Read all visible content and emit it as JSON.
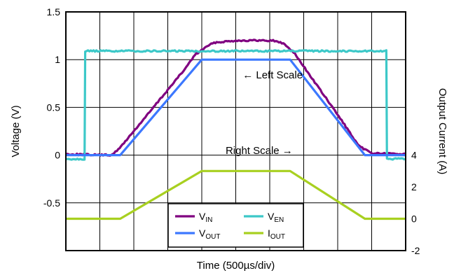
{
  "chart_data": {
    "type": "line",
    "xlabel": "Time (500µs/div)",
    "ylabel_left": "Voltage (V)",
    "ylabel_right": "Output Current (A)",
    "xlim": [
      0,
      10
    ],
    "ylim_left": [
      -1.0,
      1.5
    ],
    "ylim_right": [
      -2,
      13
    ],
    "left_ticks": [
      {
        "value": 1.5,
        "label": "1.5"
      },
      {
        "value": 1.0,
        "label": "1"
      },
      {
        "value": 0.5,
        "label": "0.5"
      },
      {
        "value": 0.0,
        "label": "0"
      },
      {
        "value": -0.5,
        "label": "-0.5"
      }
    ],
    "right_ticks": [
      {
        "value": 4,
        "label": "4"
      },
      {
        "value": 2,
        "label": "2"
      },
      {
        "value": 0,
        "label": "0"
      },
      {
        "value": -2,
        "label": "-2"
      }
    ],
    "grid": true,
    "series": [
      {
        "name": "VIN",
        "label_main": "V",
        "label_sub": "IN",
        "color": "#800080",
        "axis": "left",
        "noisy": true,
        "points": [
          [
            0,
            0.01
          ],
          [
            1.3,
            0.0
          ],
          [
            1.5,
            0.04
          ],
          [
            2.0,
            0.25
          ],
          [
            3.5,
            0.9
          ],
          [
            3.8,
            1.05
          ],
          [
            4.2,
            1.15
          ],
          [
            4.4,
            1.18
          ],
          [
            5.0,
            1.2
          ],
          [
            6.1,
            1.2
          ],
          [
            6.4,
            1.17
          ],
          [
            6.7,
            1.08
          ],
          [
            8.2,
            0.32
          ],
          [
            8.6,
            0.1
          ],
          [
            9.0,
            0.02
          ],
          [
            10,
            0.01
          ]
        ]
      },
      {
        "name": "VEN",
        "label_main": "V",
        "label_sub": "EN",
        "color": "#3cc8c8",
        "axis": "left",
        "noisy": true,
        "points": [
          [
            0,
            -0.04
          ],
          [
            0.55,
            -0.04
          ],
          [
            0.57,
            1.09
          ],
          [
            9.43,
            1.09
          ],
          [
            9.45,
            -0.04
          ],
          [
            10,
            -0.04
          ]
        ]
      },
      {
        "name": "VOUT",
        "label_main": "V",
        "label_sub": "OUT",
        "color": "#3c78ff",
        "axis": "left",
        "noisy": false,
        "points": [
          [
            0,
            0.0
          ],
          [
            1.6,
            0.0
          ],
          [
            4.0,
            1.0
          ],
          [
            6.6,
            1.0
          ],
          [
            8.8,
            0.0
          ],
          [
            10,
            0.0
          ]
        ]
      },
      {
        "name": "IOUT",
        "label_main": "I",
        "label_sub": "OUT",
        "color": "#a8d020",
        "axis": "right",
        "noisy": false,
        "points": [
          [
            0,
            0
          ],
          [
            1.6,
            0
          ],
          [
            4.0,
            3.0
          ],
          [
            6.6,
            3.0
          ],
          [
            8.8,
            0
          ],
          [
            10,
            0
          ]
        ]
      }
    ],
    "legend": {
      "placement": "bottom-center",
      "order": [
        "VIN",
        "VEN",
        "VOUT",
        "IOUT"
      ]
    },
    "annotations": [
      {
        "text": "← Left Scale",
        "x": 5.2,
        "y": 0.84,
        "axis": "left"
      },
      {
        "text": "Right Scale →",
        "x": 4.7,
        "y": 0.05,
        "axis": "left"
      }
    ]
  }
}
